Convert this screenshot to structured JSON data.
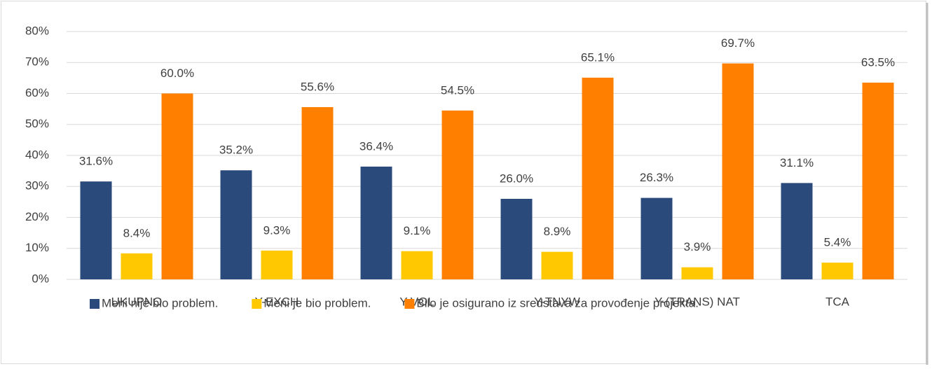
{
  "chart_data": {
    "type": "bar",
    "categories": [
      "UKUPNO",
      "Y-EXCH",
      "Y-VOL",
      "Y-TNYW",
      "Y-(TRANS) NAT",
      "TCA"
    ],
    "series": [
      {
        "name": "Meni nije bio problem.",
        "color": "#2a4a7b",
        "values": [
          31.6,
          35.2,
          36.4,
          26.0,
          26.3,
          31.1
        ],
        "value_labels": [
          "31.6%",
          "35.2%",
          "36.4%",
          "26.0%",
          "26.3%",
          "31.1%"
        ]
      },
      {
        "name": "Meni je bio problem.",
        "color": "#ffc800",
        "values": [
          8.4,
          9.3,
          9.1,
          8.9,
          3.9,
          5.4
        ],
        "value_labels": [
          "8.4%",
          "9.3%",
          "9.1%",
          "8.9%",
          "3.9%",
          "5.4%"
        ]
      },
      {
        "name": "Bilo je osigurano iz sredstava za provođenje projekta.",
        "color": "#ff8000",
        "values": [
          60.0,
          55.6,
          54.5,
          65.1,
          69.7,
          63.5
        ],
        "value_labels": [
          "60.0%",
          "55.6%",
          "54.5%",
          "65.1%",
          "69.7%",
          "63.5%"
        ]
      }
    ],
    "ylim": [
      0,
      80
    ],
    "yticks": [
      {
        "value": 0,
        "label": "0%"
      },
      {
        "value": 10,
        "label": "10%"
      },
      {
        "value": 20,
        "label": "20%"
      },
      {
        "value": 30,
        "label": "30%"
      },
      {
        "value": 40,
        "label": "40%"
      },
      {
        "value": 50,
        "label": "50%"
      },
      {
        "value": 60,
        "label": "60%"
      },
      {
        "value": 70,
        "label": "70%"
      },
      {
        "value": 80,
        "label": "80%"
      }
    ],
    "grid": true,
    "legend": "bottom"
  }
}
